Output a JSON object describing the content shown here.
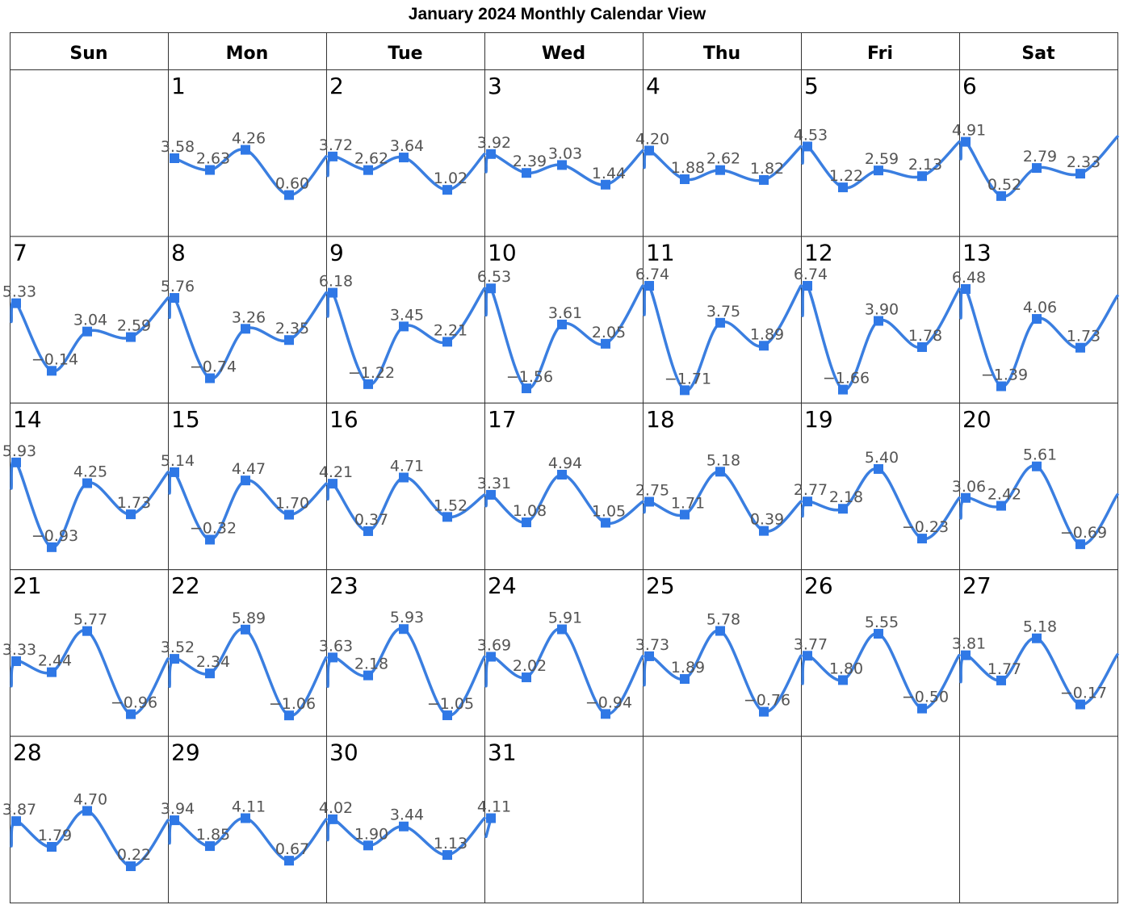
{
  "title": "January 2024 Monthly Calendar View",
  "weekdays": [
    "Sun",
    "Mon",
    "Tue",
    "Wed",
    "Thu",
    "Fri",
    "Sat"
  ],
  "colors": {
    "line": "#3a7ee0",
    "marker": "#2f78e6",
    "label": "#555555",
    "grid": "#333333"
  },
  "chart_data": {
    "type": "line",
    "title": "January 2024 Monthly Calendar View",
    "month": "January 2024",
    "first_weekday": "Mon",
    "days": [
      {
        "day": 1,
        "values": [
          3.58,
          2.63,
          4.26,
          0.6
        ]
      },
      {
        "day": 2,
        "values": [
          3.72,
          2.62,
          3.64,
          1.02
        ]
      },
      {
        "day": 3,
        "values": [
          3.92,
          2.39,
          3.03,
          1.44
        ]
      },
      {
        "day": 4,
        "values": [
          4.2,
          1.88,
          2.62,
          1.82
        ]
      },
      {
        "day": 5,
        "values": [
          4.53,
          1.22,
          2.59,
          2.13
        ]
      },
      {
        "day": 6,
        "values": [
          4.91,
          0.52,
          2.79,
          2.33
        ]
      },
      {
        "day": 7,
        "values": [
          5.33,
          -0.14,
          3.04,
          2.59
        ]
      },
      {
        "day": 8,
        "values": [
          5.76,
          -0.74,
          3.26,
          2.35
        ]
      },
      {
        "day": 9,
        "values": [
          6.18,
          -1.22,
          3.45,
          2.21
        ]
      },
      {
        "day": 10,
        "values": [
          6.53,
          -1.56,
          3.61,
          2.05
        ]
      },
      {
        "day": 11,
        "values": [
          6.74,
          -1.71,
          3.75,
          1.89
        ]
      },
      {
        "day": 12,
        "values": [
          6.74,
          -1.66,
          3.9,
          1.78
        ]
      },
      {
        "day": 13,
        "values": [
          6.48,
          -1.39,
          4.06,
          1.73
        ]
      },
      {
        "day": 14,
        "values": [
          5.93,
          -0.93,
          4.25,
          1.73
        ]
      },
      {
        "day": 15,
        "values": [
          5.14,
          -0.32,
          4.47,
          1.7
        ]
      },
      {
        "day": 16,
        "values": [
          4.21,
          0.37,
          4.71,
          1.52
        ]
      },
      {
        "day": 17,
        "values": [
          3.31,
          1.08,
          4.94,
          1.05
        ]
      },
      {
        "day": 18,
        "values": [
          2.75,
          1.71,
          5.18,
          0.39
        ]
      },
      {
        "day": 19,
        "values": [
          2.77,
          2.18,
          5.4,
          -0.23
        ]
      },
      {
        "day": 20,
        "values": [
          3.06,
          2.42,
          5.61,
          -0.69
        ]
      },
      {
        "day": 21,
        "values": [
          3.33,
          2.44,
          5.77,
          -0.96
        ]
      },
      {
        "day": 22,
        "values": [
          3.52,
          2.34,
          5.89,
          -1.06
        ]
      },
      {
        "day": 23,
        "values": [
          3.63,
          2.18,
          5.93,
          -1.05
        ]
      },
      {
        "day": 24,
        "values": [
          3.69,
          2.02,
          5.91,
          -0.94
        ]
      },
      {
        "day": 25,
        "values": [
          3.73,
          1.89,
          5.78,
          -0.76
        ]
      },
      {
        "day": 26,
        "values": [
          3.77,
          1.8,
          5.55,
          -0.5
        ]
      },
      {
        "day": 27,
        "values": [
          3.81,
          1.77,
          5.18,
          -0.17
        ]
      },
      {
        "day": 28,
        "values": [
          3.87,
          1.79,
          4.7,
          0.22
        ]
      },
      {
        "day": 29,
        "values": [
          3.94,
          1.85,
          4.11,
          0.67
        ]
      },
      {
        "day": 30,
        "values": [
          4.02,
          1.9,
          3.44,
          1.13
        ]
      },
      {
        "day": 31,
        "values": [
          4.11
        ]
      }
    ],
    "ylim": [
      -2.3,
      7.5
    ],
    "grid": false,
    "legend": "none"
  }
}
